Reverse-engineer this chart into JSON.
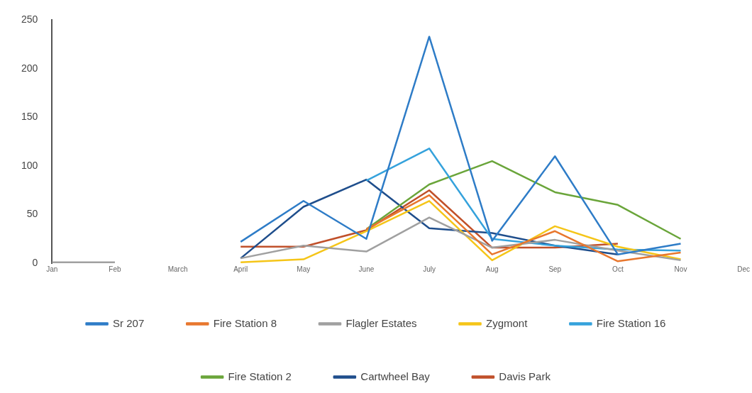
{
  "chart_data": {
    "type": "line",
    "categories": [
      "Jan",
      "Feb",
      "March",
      "April",
      "May",
      "June",
      "July",
      "Aug",
      "Sep",
      "Oct",
      "Nov",
      "Dec"
    ],
    "ylim": [
      0,
      250
    ],
    "yticks": [
      0,
      50,
      100,
      150,
      200,
      250
    ],
    "grid": false,
    "legend": "bottom",
    "marker": "none",
    "line_style": "solid",
    "series": [
      {
        "name": "Sr 207",
        "color": "#2e7cc7",
        "values": [
          null,
          null,
          null,
          22,
          64,
          25,
          233,
          23,
          110,
          9,
          20,
          null
        ]
      },
      {
        "name": "Fire Station 8",
        "color": "#e8772e",
        "values": [
          null,
          null,
          null,
          null,
          null,
          35,
          70,
          9,
          33,
          2,
          11,
          null
        ]
      },
      {
        "name": "Flagler Estates",
        "color": "#a0a0a0",
        "values": [
          1,
          1,
          null,
          5,
          18,
          12,
          47,
          16,
          24,
          13,
          3,
          null
        ]
      },
      {
        "name": "Zygmont",
        "color": "#f5c518",
        "values": [
          null,
          null,
          null,
          1,
          4,
          33,
          64,
          3,
          38,
          17,
          4,
          null
        ]
      },
      {
        "name": "Fire Station 16",
        "color": "#35a2dc",
        "values": [
          null,
          null,
          null,
          null,
          null,
          85,
          118,
          25,
          18,
          14,
          13,
          null
        ]
      },
      {
        "name": "Fire Station 2",
        "color": "#6aa53a",
        "values": [
          null,
          null,
          null,
          null,
          null,
          35,
          81,
          105,
          73,
          60,
          25,
          null
        ]
      },
      {
        "name": "Cartwheel Bay",
        "color": "#1f4e8c",
        "values": [
          null,
          null,
          null,
          5,
          58,
          86,
          36,
          31,
          18,
          9,
          null,
          null
        ]
      },
      {
        "name": "Davis Park",
        "color": "#c0502a",
        "values": [
          null,
          null,
          null,
          17,
          17,
          34,
          75,
          16,
          16,
          20,
          null,
          null
        ]
      }
    ]
  }
}
